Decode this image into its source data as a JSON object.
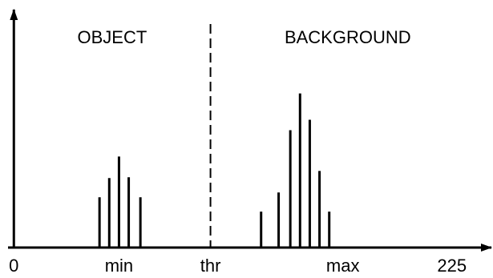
{
  "chart_data": {
    "type": "bar",
    "labels": [
      "OBJECT",
      "BACKGROUND"
    ],
    "x": [
      44,
      49,
      54,
      59,
      65,
      127,
      136,
      142,
      147,
      152,
      157,
      162
    ],
    "values": [
      63,
      87,
      114,
      88,
      63,
      45,
      69,
      147,
      193,
      160,
      96,
      45
    ],
    "color": "#000000",
    "xlim": [
      -3,
      242
    ],
    "ylim": [
      0,
      290
    ],
    "xticks": [
      0,
      {
        "value": 54,
        "label": "min"
      },
      {
        "value": 101,
        "label": "thr"
      },
      {
        "value": 169,
        "label": "max"
      },
      225
    ],
    "threshold_tick": 2
  }
}
